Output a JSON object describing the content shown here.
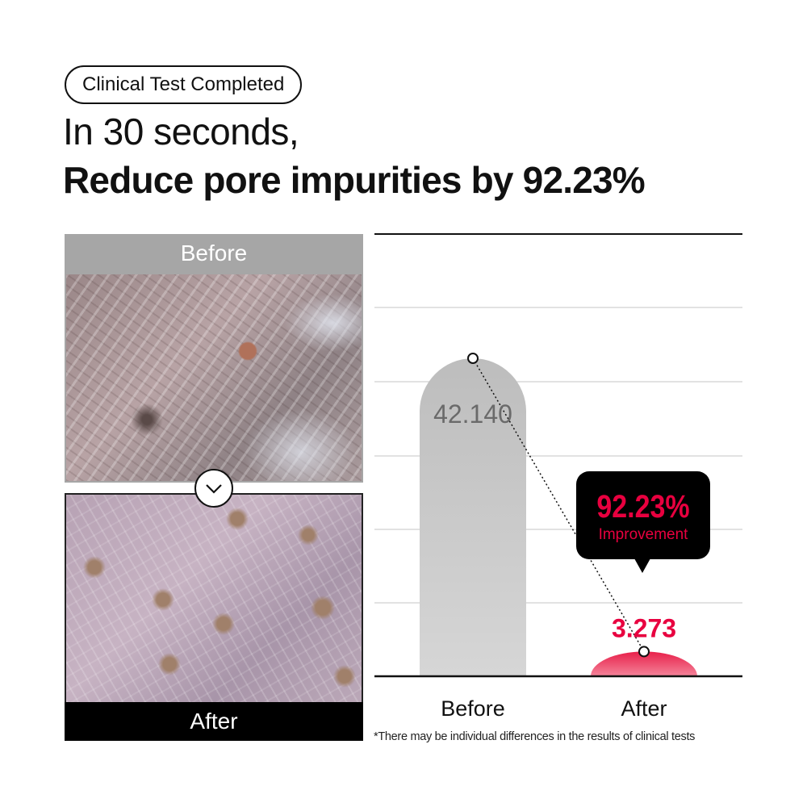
{
  "badge": "Clinical Test Completed",
  "headline_line1": "In 30 seconds,",
  "headline_line2": "Reduce pore impurities by 92.23%",
  "photos": {
    "before_label": "Before",
    "after_label": "After",
    "divider_icon": "chevron-down-icon"
  },
  "callout": {
    "percent": "92.23%",
    "label": "Improvement"
  },
  "footnote": "*There may be individual differences in the results of clinical tests",
  "colors": {
    "accent": "#e8003f",
    "before_bar": "#c8c8c8",
    "callout_bg": "#000000"
  },
  "chart_data": {
    "type": "bar",
    "categories": [
      "Before",
      "After"
    ],
    "values": [
      42.14,
      3.273
    ],
    "value_labels": [
      "42.140",
      "3.273"
    ],
    "ylim": [
      0,
      50
    ],
    "grid": true,
    "annotation": "92.23% Improvement"
  }
}
